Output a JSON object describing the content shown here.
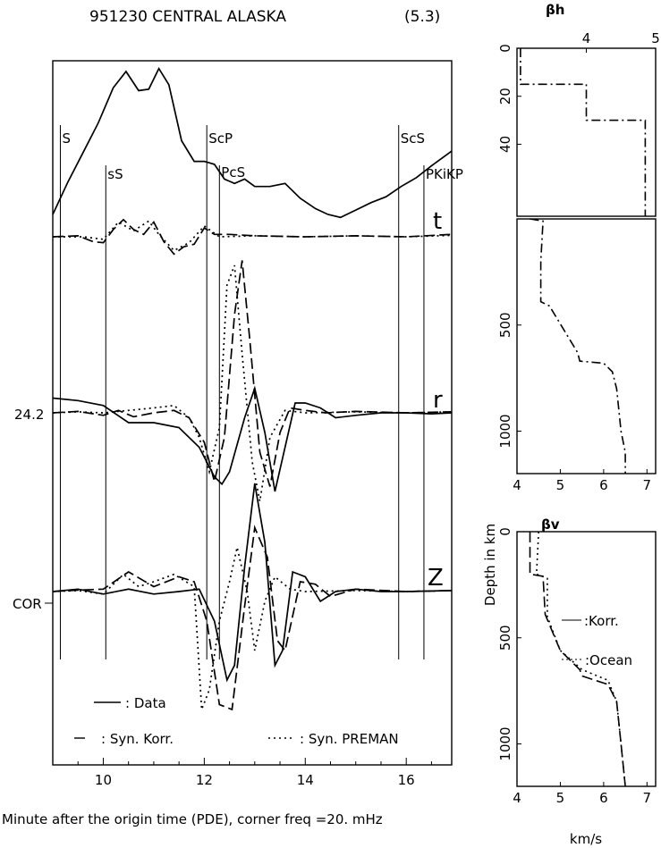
{
  "title": "951230 CENTRAL ALASKA",
  "magnitude": "(5.3)",
  "xlabel": "Minute after the origin time (PDE), corner freq   =20.   mHz",
  "chart_data": [
    {
      "type": "line",
      "name": "waveforms",
      "xlim": [
        9,
        16.9
      ],
      "xticks": [
        "10",
        "12",
        "14",
        "16"
      ],
      "component_labels": [
        "t",
        "r",
        "Z"
      ],
      "left_labels": [
        "24.2",
        "COR"
      ],
      "phases": [
        {
          "name": "S",
          "time": 9.15
        },
        {
          "name": "sS",
          "time": 10.05
        },
        {
          "name": "ScP",
          "time": 12.05
        },
        {
          "name": "PcS",
          "time": 12.3
        },
        {
          "name": "ScS",
          "time": 15.85
        },
        {
          "name": "PKiKP",
          "time": 16.35
        }
      ],
      "legend": [
        {
          "style": "solid",
          "label": ": Data"
        },
        {
          "style": "dashed",
          "label": ": Syn. Korr."
        },
        {
          "style": "dotted",
          "label": ": Syn. PREMAN"
        }
      ],
      "correlation_curve": {
        "x": [
          9,
          9.3,
          9.6,
          9.9,
          10.2,
          10.45,
          10.7,
          10.9,
          11.1,
          11.3,
          11.55,
          11.8,
          12.0,
          12.2,
          12.4,
          12.6,
          12.8,
          13.0,
          13.3,
          13.6,
          13.9,
          14.2,
          14.45,
          14.7,
          15.0,
          15.3,
          15.6,
          15.9,
          16.2,
          16.5,
          16.9
        ],
        "y": [
          0.0,
          0.22,
          0.42,
          0.62,
          0.86,
          0.97,
          0.84,
          0.85,
          0.99,
          0.88,
          0.5,
          0.36,
          0.36,
          0.34,
          0.24,
          0.21,
          0.24,
          0.19,
          0.19,
          0.21,
          0.11,
          0.04,
          0.0,
          -0.02,
          0.03,
          0.08,
          0.12,
          0.19,
          0.25,
          0.33,
          0.43
        ]
      },
      "traces": [
        {
          "component": "t",
          "style": "dashed",
          "x": [
            9.0,
            9.5,
            9.8,
            10.0,
            10.2,
            10.4,
            10.6,
            10.8,
            11.0,
            11.2,
            11.4,
            11.6,
            11.8,
            12.0,
            12.2,
            12.5,
            13.0,
            14.0,
            15.0,
            16.0,
            16.9
          ],
          "y": [
            0,
            0.02,
            -0.1,
            -0.12,
            0.15,
            0.35,
            0.15,
            0.05,
            0.3,
            -0.1,
            -0.35,
            -0.2,
            -0.15,
            0.18,
            0.05,
            0.05,
            0.02,
            0.0,
            0.02,
            0.0,
            0.05
          ]
        },
        {
          "component": "t",
          "style": "dotted",
          "x": [
            9.0,
            9.6,
            10.0,
            10.3,
            10.6,
            10.9,
            11.1,
            11.4,
            11.7,
            12.0,
            12.3,
            13.0,
            14.0,
            15.0,
            16.0,
            16.9
          ],
          "y": [
            0,
            0.0,
            -0.05,
            0.3,
            0.12,
            0.32,
            0.05,
            -0.28,
            -0.12,
            0.22,
            0.0,
            0.02,
            0.0,
            0.02,
            0.0,
            0.03
          ]
        },
        {
          "component": "r",
          "style": "solid",
          "x": [
            9.0,
            9.5,
            10.0,
            10.5,
            11.0,
            11.5,
            11.9,
            12.2,
            12.35,
            12.5,
            12.8,
            13.0,
            13.2,
            13.4,
            13.6,
            13.8,
            14.0,
            14.3,
            14.6,
            15.0,
            15.5,
            16.0,
            16.5,
            16.9
          ],
          "y": [
            0.3,
            0.25,
            0.15,
            -0.2,
            -0.2,
            -0.3,
            -0.7,
            -1.3,
            -1.45,
            -1.2,
            -0.1,
            0.5,
            -0.4,
            -1.6,
            -0.7,
            0.2,
            0.2,
            0.1,
            -0.1,
            -0.05,
            0.0,
            0.0,
            -0.02,
            0.0
          ]
        },
        {
          "component": "r",
          "style": "dashed",
          "x": [
            9.0,
            9.5,
            10.0,
            10.3,
            10.6,
            11.0,
            11.4,
            11.7,
            12.0,
            12.2,
            12.4,
            12.6,
            12.75,
            12.9,
            13.1,
            13.3,
            13.5,
            13.7,
            14.0,
            14.4,
            15.0,
            16.0,
            16.9
          ],
          "y": [
            0,
            0.03,
            -0.05,
            0.05,
            -0.08,
            0.0,
            0.05,
            -0.1,
            -0.6,
            -1.4,
            -0.5,
            2.0,
            3.1,
            1.5,
            -0.8,
            -1.5,
            -0.4,
            0.1,
            0.05,
            0.0,
            0.03,
            0.0,
            0.02
          ]
        },
        {
          "component": "r",
          "style": "dotted",
          "x": [
            9.0,
            9.5,
            10.0,
            10.5,
            11.0,
            11.4,
            11.7,
            11.9,
            12.1,
            12.3,
            12.45,
            12.6,
            12.75,
            12.95,
            13.1,
            13.3,
            13.6,
            14.0,
            15.0,
            16.0,
            16.9
          ],
          "y": [
            0,
            0.02,
            0.0,
            0.05,
            0.1,
            0.15,
            -0.1,
            -0.5,
            -1.2,
            -0.3,
            2.6,
            3.0,
            1.2,
            -1.0,
            -1.8,
            -0.5,
            0.05,
            0.0,
            0.02,
            0.0,
            0.02
          ]
        },
        {
          "component": "Z",
          "style": "solid",
          "x": [
            9.0,
            9.5,
            10.0,
            10.5,
            11.0,
            11.5,
            11.9,
            12.2,
            12.45,
            12.6,
            12.8,
            13.0,
            13.2,
            13.4,
            13.55,
            13.75,
            14.0,
            14.3,
            14.6,
            15.0,
            15.5,
            16.0,
            16.9
          ],
          "y": [
            0,
            0.05,
            -0.05,
            0.05,
            -0.05,
            0.0,
            0.05,
            -0.6,
            -1.8,
            -1.5,
            0.5,
            2.2,
            1.0,
            -1.5,
            -1.2,
            0.4,
            0.3,
            -0.2,
            0.0,
            0.05,
            0.0,
            0.0,
            0.02
          ]
        },
        {
          "component": "Z",
          "style": "dashed",
          "x": [
            9.0,
            9.5,
            10.0,
            10.5,
            11.0,
            11.5,
            11.8,
            12.05,
            12.3,
            12.55,
            12.8,
            13.0,
            13.25,
            13.45,
            13.6,
            13.9,
            14.2,
            14.5,
            15.0,
            16.0,
            16.9
          ],
          "y": [
            0,
            0.03,
            0.05,
            0.4,
            0.1,
            0.3,
            0.2,
            -0.6,
            -2.3,
            -2.4,
            -0.3,
            1.3,
            0.7,
            -1.0,
            -1.2,
            0.2,
            0.15,
            -0.1,
            0.05,
            0.0,
            0.02
          ]
        },
        {
          "component": "Z",
          "style": "dotted",
          "x": [
            9.0,
            9.5,
            10.0,
            10.4,
            10.7,
            11.0,
            11.4,
            11.8,
            11.95,
            12.1,
            12.3,
            12.5,
            12.65,
            12.85,
            13.0,
            13.2,
            13.4,
            13.7,
            14.0,
            15.0,
            16.0,
            16.9
          ],
          "y": [
            0,
            0.02,
            -0.05,
            0.35,
            0.1,
            0.2,
            0.35,
            0.1,
            -2.4,
            -2.0,
            -0.6,
            0.2,
            0.9,
            0.0,
            -1.2,
            -0.2,
            0.3,
            0.05,
            0.0,
            0.02,
            0.0,
            0.02
          ]
        }
      ]
    },
    {
      "type": "line",
      "name": "beta_h profile",
      "title": "βh",
      "xlim": [
        3,
        5
      ],
      "xticks": [
        "4",
        "5"
      ],
      "ylim": [
        0,
        70
      ],
      "yticks": [
        "0",
        "20",
        "40"
      ],
      "series": [
        {
          "style": "dashdot",
          "x": [
            3.05,
            3.05,
            4.0,
            4.0,
            4.85,
            4.85
          ],
          "y": [
            0,
            15,
            15,
            30,
            30,
            70
          ]
        }
      ]
    },
    {
      "type": "line",
      "name": "beta_h deep profile",
      "xlim": [
        4,
        7.2
      ],
      "xticks": [
        "4",
        "5",
        "6",
        "7"
      ],
      "ylim": [
        0,
        1200
      ],
      "yticks": [
        "500",
        "1000"
      ],
      "series": [
        {
          "style": "dashdot",
          "x": [
            4.3,
            4.6,
            4.55,
            4.55,
            4.75,
            5.4,
            5.45,
            6.0,
            6.2,
            6.3,
            6.4,
            6.5,
            6.5
          ],
          "y": [
            0,
            10,
            200,
            390,
            410,
            630,
            670,
            680,
            720,
            800,
            1000,
            1100,
            1200
          ]
        }
      ]
    },
    {
      "type": "line",
      "name": "beta_v profile",
      "title": "βv",
      "ylabel": "Depth in km",
      "xlabel": "km/s",
      "xlim": [
        4,
        7.2
      ],
      "xticks": [
        "4",
        "5",
        "6",
        "7"
      ],
      "ylim": [
        0,
        1200
      ],
      "yticks": [
        "0",
        "500",
        "1000"
      ],
      "annotations": [
        ":Korr.",
        ":Ocean"
      ],
      "series": [
        {
          "style": "dashed",
          "name": ":Korr.",
          "x": [
            4.3,
            4.3,
            4.6,
            4.65,
            5.0,
            5.45,
            5.5,
            6.1,
            6.3,
            6.4,
            6.5
          ],
          "y": [
            0,
            200,
            210,
            390,
            560,
            650,
            680,
            720,
            800,
            1000,
            1200
          ]
        },
        {
          "style": "dotted",
          "name": ":Ocean",
          "x": [
            4.5,
            4.45,
            4.7,
            4.7,
            5.0,
            5.5,
            6.1,
            6.3,
            6.4,
            6.5
          ],
          "y": [
            0,
            200,
            220,
            400,
            560,
            650,
            700,
            800,
            1000,
            1200
          ]
        }
      ]
    }
  ]
}
